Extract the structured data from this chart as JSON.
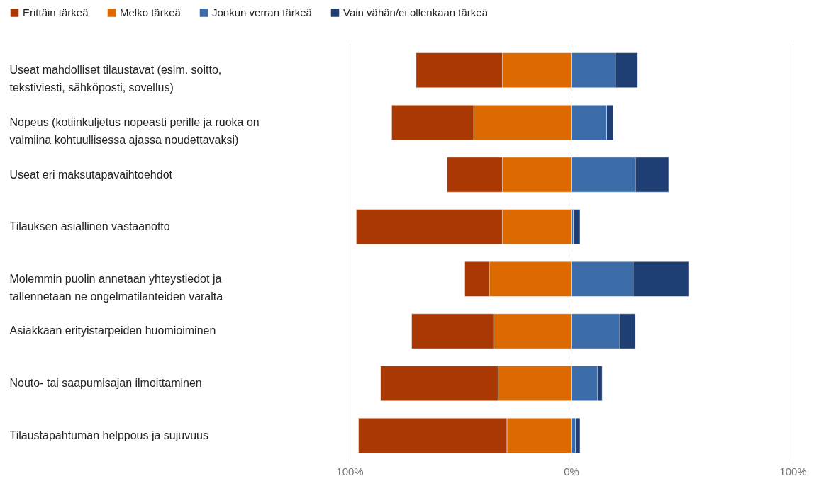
{
  "chart_data": {
    "type": "bar",
    "orientation": "horizontal",
    "stacked": true,
    "categories": [
      "Useat mahdolliset tilaustavat (esim. soitto, tekstiviesti, sähköposti, sovellus)",
      "Nopeus (kotiinkuljetus nopeasti perille ja ruoka on valmiina kohtuullisessa ajassa noudettavaksi)",
      "Useat eri maksutapavaihtoehdot",
      "Tilauksen asiallinen vastaanotto",
      "Molemmin puolin annetaan yhteystiedot ja tallennetaan ne ongelmatilanteiden varalta",
      "Asiakkaan erityistarpeiden huomioiminen",
      "Nouto- tai saapumisajan ilmoittaminen",
      "Tilaustapahtuman helppous ja sujuvuus"
    ],
    "series": [
      {
        "name": "Melko tärkeä",
        "color": "#dc6a00",
        "values": [
          -31,
          -44,
          -31,
          -31,
          -37,
          -35,
          -33,
          -29
        ]
      },
      {
        "name": "Erittäin tärkeä",
        "color": "#a93802",
        "values": [
          -39,
          -37,
          -25,
          -66,
          -11,
          -37,
          -53,
          -67
        ]
      },
      {
        "name": "Jonkun verran tärkeä",
        "color": "#3b6ca8",
        "values": [
          20,
          16,
          29,
          1,
          28,
          22,
          12,
          2
        ]
      },
      {
        "name": "Vain vähän/ei ollenkaan tärkeä",
        "color": "#1f3f74",
        "values": [
          10,
          3,
          15,
          3,
          25,
          7,
          2,
          2
        ]
      }
    ],
    "xlim": [
      -100,
      100
    ],
    "xticks": [
      {
        "value": -100,
        "label": "100%"
      },
      {
        "value": 0,
        "label": "0%"
      },
      {
        "value": 100,
        "label": "100%"
      }
    ],
    "grid": "x",
    "legend": "top left"
  }
}
